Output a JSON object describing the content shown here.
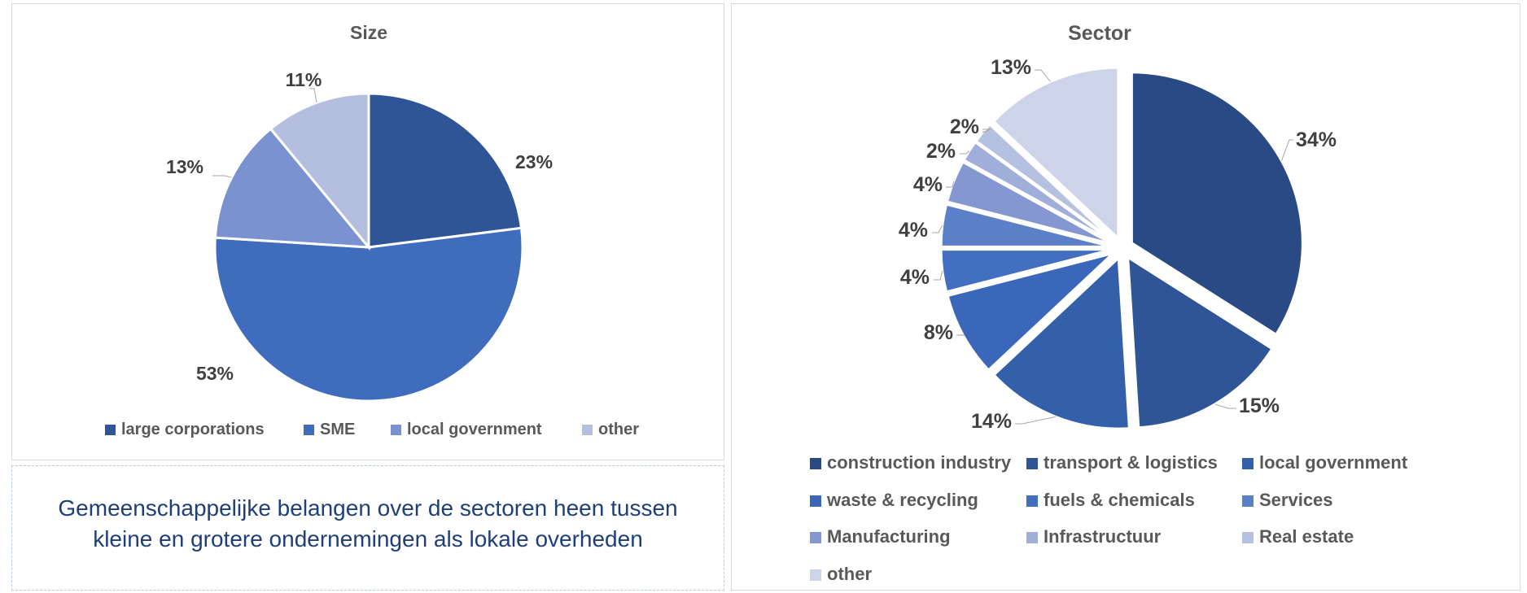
{
  "chart_data": [
    {
      "type": "pie",
      "title": "Size",
      "categories": [
        "large corporations",
        "SME",
        "local government",
        "other"
      ],
      "values": [
        23,
        53,
        13,
        11
      ],
      "data_labels": [
        "23%",
        "53%",
        "13%",
        "11%"
      ],
      "colors": [
        "#2f5597",
        "#3f6cbd",
        "#7b92d0",
        "#b4bfe0"
      ],
      "legend_position": "bottom"
    },
    {
      "type": "pie",
      "title": "Sector",
      "categories": [
        "construction industry",
        "transport & logistics",
        "local government",
        "waste & recycling",
        "fuels & chemicals",
        "Services",
        "Manufacturing",
        "Infrastructuur",
        "Real estate",
        "other"
      ],
      "values": [
        34,
        15,
        14,
        8,
        4,
        4,
        4,
        2,
        2,
        13
      ],
      "data_labels": [
        "34%",
        "15%",
        "14%",
        "8%",
        "4%",
        "4%",
        "4%",
        "2%",
        "2%",
        "13%"
      ],
      "colors": [
        "#2a4a85",
        "#2f5597",
        "#3460aa",
        "#3a67b9",
        "#436fc1",
        "#5c80c8",
        "#8497d0",
        "#a0afd9",
        "#b6c1e2",
        "#cdd4ea"
      ],
      "legend_position": "bottom",
      "exploded": true
    }
  ],
  "caption": {
    "line1": "Gemeenschappelijke belangen over de sectoren heen tussen",
    "line2": "kleine en grotere ondernemingen als lokale overheden"
  }
}
